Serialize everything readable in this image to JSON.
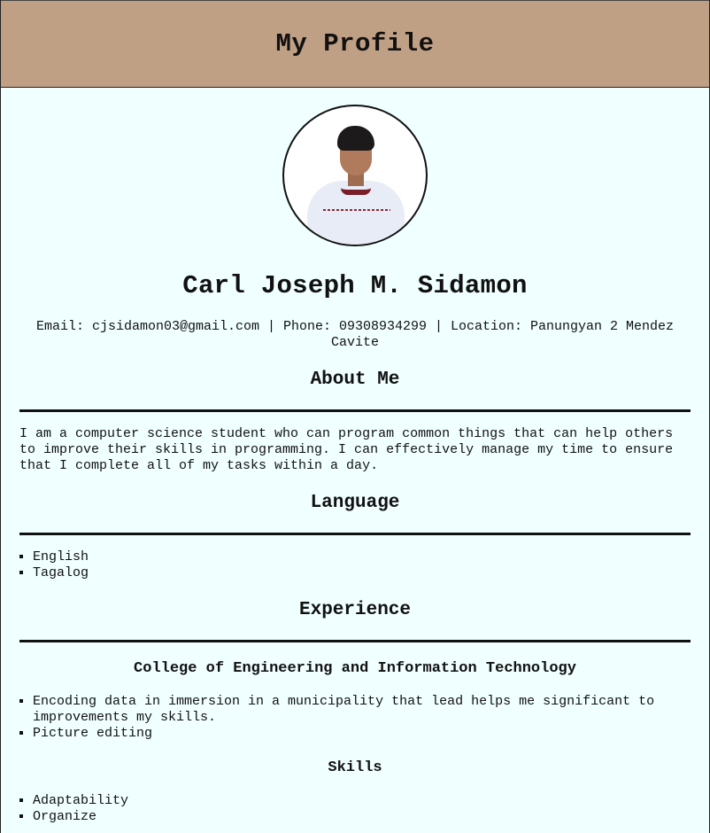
{
  "header": {
    "title": "My Profile"
  },
  "profile": {
    "photo_alt": "profile photo",
    "name": "Carl Joseph M. Sidamon",
    "contact": "Email: cjsidamon03@gmail.com | Phone: 09308934299 | Location: Panungyan 2 Mendez Cavite"
  },
  "about": {
    "heading": "About Me",
    "text": "I am a computer science student who can program common things that can help others to improve their skills in programming. I can effectively manage my time to ensure that I complete all of my tasks within a day."
  },
  "language": {
    "heading": "Language",
    "items": [
      "English",
      "Tagalog"
    ]
  },
  "experience": {
    "heading": "Experience",
    "org": "College of Engineering and Information Technology",
    "items": [
      "Encoding data in immersion in a municipality that lead helps me significant to improvements my skills.",
      "Picture editing"
    ],
    "skills_heading": "Skills",
    "skills": [
      "Adaptability",
      "Organize"
    ]
  }
}
